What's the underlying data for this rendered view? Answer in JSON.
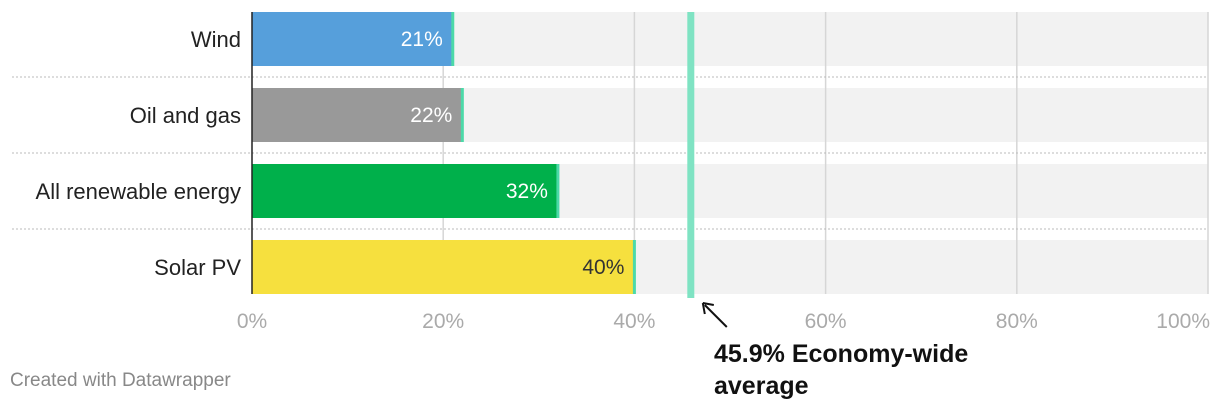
{
  "chart_data": {
    "type": "bar",
    "orientation": "horizontal",
    "categories": [
      "Wind",
      "Oil and gas",
      "All renewable energy",
      "Solar PV"
    ],
    "values": [
      21,
      22,
      32,
      40
    ],
    "value_labels": [
      "21%",
      "22%",
      "32%",
      "40%"
    ],
    "bar_colors": [
      "#569fdb",
      "#999999",
      "#00b04b",
      "#f6e03e"
    ],
    "label_colors": [
      "#ffffff",
      "#ffffff",
      "#ffffff",
      "#333333"
    ],
    "xlim": [
      0,
      100
    ],
    "xticks": [
      0,
      20,
      40,
      60,
      80,
      100
    ],
    "xtick_labels": [
      "0%",
      "20%",
      "40%",
      "60%",
      "80%",
      "100%"
    ],
    "reference_line": {
      "value": 45.9,
      "label_lines": [
        "45.9% Economy-wide",
        "average"
      ],
      "color": "#7fe3c3"
    },
    "grid": true,
    "background_track_color": "#f2f2f2"
  },
  "footer": {
    "credit": "Created with Datawrapper"
  }
}
